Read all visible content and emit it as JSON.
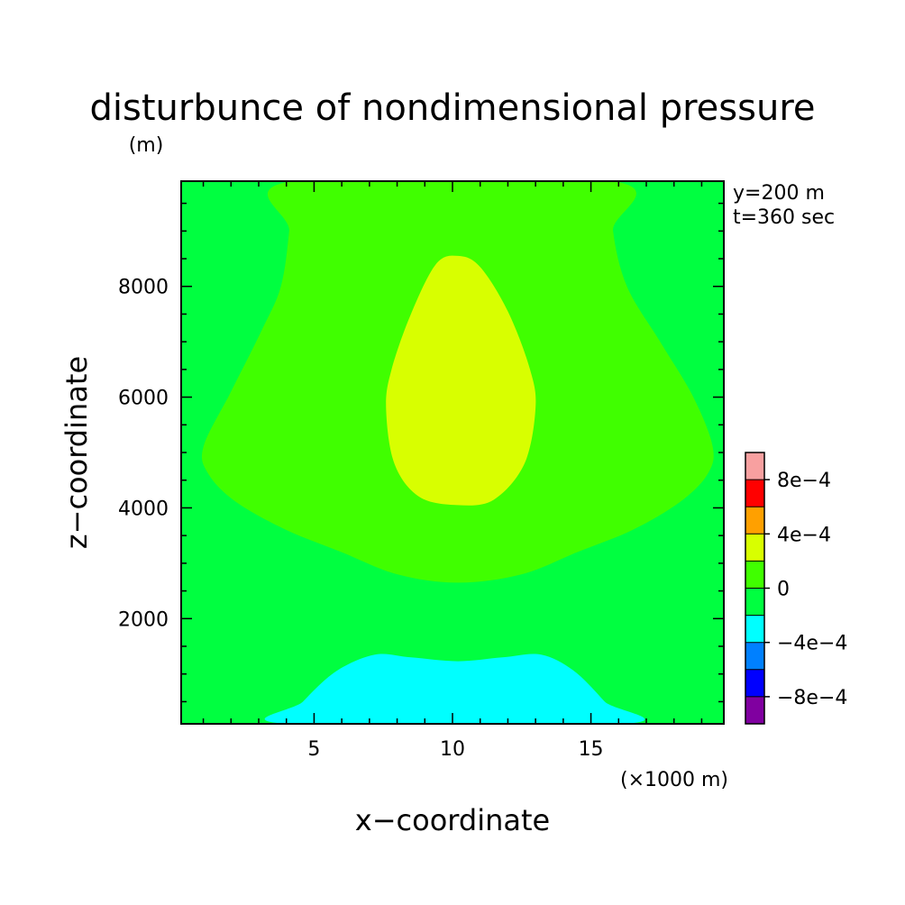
{
  "chart_data": {
    "type": "heatmap",
    "title": "disturbunce of nondimensional pressure",
    "units": "(m)",
    "xlabel": "x−coordinate",
    "ylabel": "z−coordinate",
    "x_scale_note": "(×1000 m)",
    "annotations": [
      "y=200 m",
      "t=360 sec"
    ],
    "xlim": [
      0.2,
      19.8
    ],
    "ylim": [
      100,
      9900
    ],
    "x_ticks": [
      5,
      10,
      15
    ],
    "x_tick_labels": [
      "5",
      "10",
      "15"
    ],
    "y_ticks": [
      2000,
      4000,
      6000,
      8000
    ],
    "y_tick_labels": [
      "2000",
      "4000",
      "6000",
      "8000"
    ],
    "levels": [
      -0.001,
      -0.0008,
      -0.0006,
      -0.0004,
      -0.0002,
      0,
      0.0002,
      0.0004,
      0.0006,
      0.0008,
      0.001
    ],
    "colors": [
      "#8000a0",
      "#0000ff",
      "#0080ff",
      "#00ffff",
      "#00ff40",
      "#40ff00",
      "#d8ff00",
      "#ffa000",
      "#ff0000",
      "#f8a0a0"
    ],
    "colorbar_labels": [
      {
        "value": 0.0008,
        "text": "8e−4"
      },
      {
        "value": 0.0004,
        "text": "4e−4"
      },
      {
        "value": 0,
        "text": "0"
      },
      {
        "value": -0.0004,
        "text": "−4e−4"
      },
      {
        "value": -0.0008,
        "text": "−8e−4"
      }
    ],
    "background_region": {
      "range": [
        -0.0002,
        0
      ],
      "color": "#00ff40"
    },
    "regions": [
      {
        "name": "positive-region",
        "range": [
          0,
          0.0002
        ],
        "color": "#40ff00",
        "points": [
          [
            4.2,
            9900
          ],
          [
            4.1,
            9000
          ],
          [
            3.8,
            8000
          ],
          [
            3.1,
            7200
          ],
          [
            2.0,
            6100
          ],
          [
            1.0,
            5100
          ],
          [
            1.2,
            4600
          ],
          [
            2.2,
            4100
          ],
          [
            4.0,
            3600
          ],
          [
            6.0,
            3200
          ],
          [
            8.0,
            2800
          ],
          [
            10.2,
            2650
          ],
          [
            12.5,
            2800
          ],
          [
            14.5,
            3200
          ],
          [
            16.5,
            3600
          ],
          [
            18.2,
            4100
          ],
          [
            19.2,
            4600
          ],
          [
            19.4,
            5100
          ],
          [
            18.7,
            6000
          ],
          [
            17.5,
            7000
          ],
          [
            16.3,
            8000
          ],
          [
            15.8,
            9000
          ],
          [
            15.8,
            9900
          ]
        ]
      },
      {
        "name": "high-pressure-core",
        "range": [
          0.0002,
          0.0004
        ],
        "color": "#d8ff00",
        "points": [
          [
            10.2,
            8550
          ],
          [
            11.0,
            8350
          ],
          [
            12.0,
            7550
          ],
          [
            12.8,
            6500
          ],
          [
            13.0,
            5800
          ],
          [
            12.6,
            4800
          ],
          [
            11.5,
            4150
          ],
          [
            10.2,
            4050
          ],
          [
            8.8,
            4200
          ],
          [
            7.9,
            4800
          ],
          [
            7.6,
            5800
          ],
          [
            7.8,
            6500
          ],
          [
            8.5,
            7500
          ],
          [
            9.4,
            8400
          ]
        ]
      },
      {
        "name": "negative-region",
        "range": [
          -0.0004,
          -0.0002
        ],
        "color": "#00ffff",
        "points": [
          [
            4.0,
            100
          ],
          [
            4.6,
            500
          ],
          [
            5.8,
            1050
          ],
          [
            7.2,
            1350
          ],
          [
            8.5,
            1300
          ],
          [
            10.2,
            1230
          ],
          [
            11.8,
            1300
          ],
          [
            13.2,
            1350
          ],
          [
            14.4,
            1050
          ],
          [
            15.5,
            500
          ],
          [
            16.2,
            100
          ]
        ]
      }
    ]
  }
}
